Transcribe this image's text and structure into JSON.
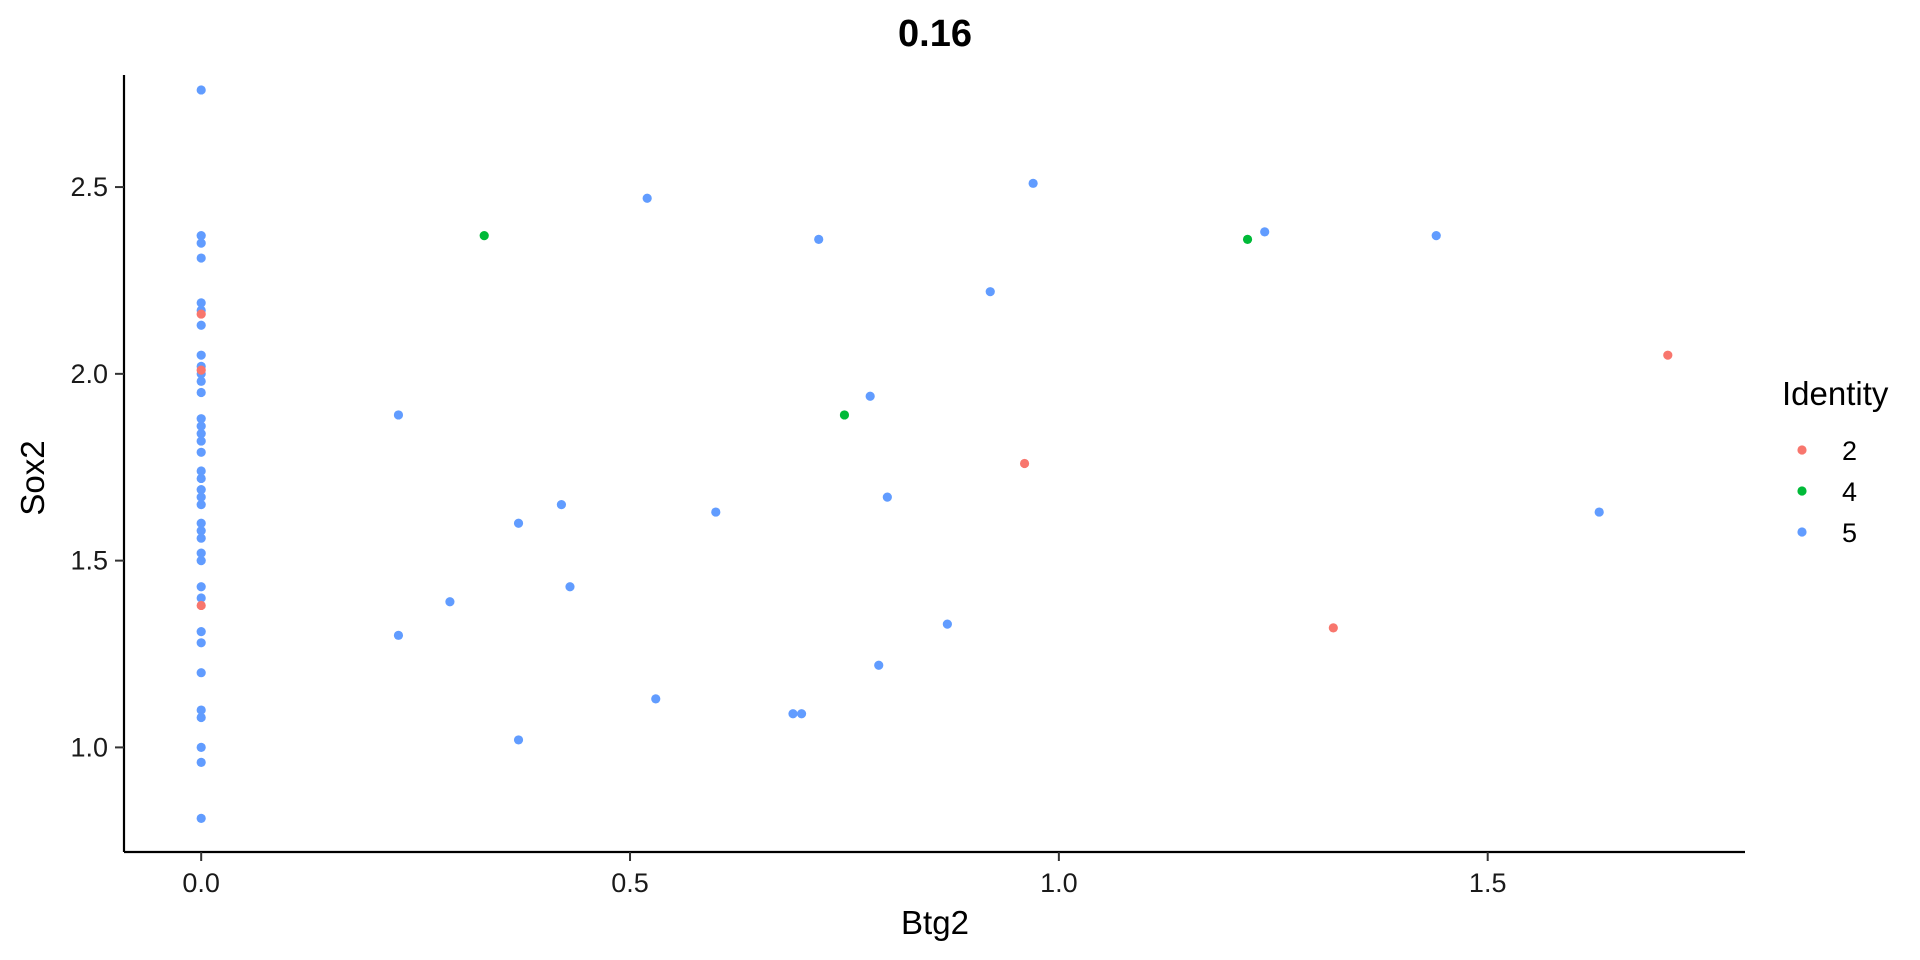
{
  "chart_data": {
    "type": "scatter",
    "title": "0.16",
    "xlabel": "Btg2",
    "ylabel": "Sox2",
    "xlim": [
      -0.09,
      1.8
    ],
    "ylim": [
      0.72,
      2.8
    ],
    "xticks": [
      0.0,
      0.5,
      1.0,
      1.5
    ],
    "yticks": [
      1.0,
      1.5,
      2.0,
      2.5
    ],
    "xtick_labels": [
      "0.0",
      "0.5",
      "1.0",
      "1.5"
    ],
    "ytick_labels": [
      "1.0",
      "1.5",
      "2.0",
      "2.5"
    ],
    "grid": false,
    "legend": {
      "title": "Identity",
      "position": "right"
    },
    "series": [
      {
        "name": "2",
        "color": "#F8766D",
        "points": [
          [
            0.0,
            2.16
          ],
          [
            0.0,
            2.01
          ],
          [
            0.0,
            1.38
          ],
          [
            0.96,
            1.76
          ],
          [
            1.32,
            1.32
          ],
          [
            1.71,
            2.05
          ]
        ]
      },
      {
        "name": "4",
        "color": "#00BA38",
        "points": [
          [
            0.33,
            2.37
          ],
          [
            0.75,
            1.89
          ],
          [
            1.22,
            2.36
          ]
        ]
      },
      {
        "name": "5",
        "color": "#619CFF",
        "points": [
          [
            0.0,
            2.76
          ],
          [
            0.0,
            2.37
          ],
          [
            0.0,
            2.35
          ],
          [
            0.0,
            2.31
          ],
          [
            0.0,
            2.19
          ],
          [
            0.0,
            2.17
          ],
          [
            0.0,
            2.13
          ],
          [
            0.0,
            2.05
          ],
          [
            0.0,
            2.02
          ],
          [
            0.0,
            2.0
          ],
          [
            0.0,
            1.98
          ],
          [
            0.0,
            1.95
          ],
          [
            0.0,
            1.88
          ],
          [
            0.0,
            1.86
          ],
          [
            0.0,
            1.84
          ],
          [
            0.0,
            1.82
          ],
          [
            0.0,
            1.79
          ],
          [
            0.0,
            1.74
          ],
          [
            0.0,
            1.72
          ],
          [
            0.0,
            1.69
          ],
          [
            0.0,
            1.67
          ],
          [
            0.0,
            1.65
          ],
          [
            0.0,
            1.6
          ],
          [
            0.0,
            1.58
          ],
          [
            0.0,
            1.56
          ],
          [
            0.0,
            1.52
          ],
          [
            0.0,
            1.5
          ],
          [
            0.0,
            1.43
          ],
          [
            0.0,
            1.4
          ],
          [
            0.0,
            1.31
          ],
          [
            0.0,
            1.28
          ],
          [
            0.0,
            1.2
          ],
          [
            0.0,
            1.1
          ],
          [
            0.0,
            1.08
          ],
          [
            0.0,
            1.0
          ],
          [
            0.0,
            0.96
          ],
          [
            0.0,
            0.81
          ],
          [
            0.23,
            1.89
          ],
          [
            0.23,
            1.3
          ],
          [
            0.29,
            1.39
          ],
          [
            0.37,
            1.6
          ],
          [
            0.37,
            1.02
          ],
          [
            0.42,
            1.65
          ],
          [
            0.43,
            1.43
          ],
          [
            0.52,
            2.47
          ],
          [
            0.53,
            1.13
          ],
          [
            0.6,
            1.63
          ],
          [
            0.69,
            1.09
          ],
          [
            0.7,
            1.09
          ],
          [
            0.72,
            2.36
          ],
          [
            0.78,
            1.94
          ],
          [
            0.79,
            1.22
          ],
          [
            0.8,
            1.67
          ],
          [
            0.87,
            1.33
          ],
          [
            0.92,
            2.22
          ],
          [
            0.97,
            2.51
          ],
          [
            1.24,
            2.38
          ],
          [
            1.44,
            2.37
          ],
          [
            1.63,
            1.63
          ]
        ]
      }
    ]
  }
}
